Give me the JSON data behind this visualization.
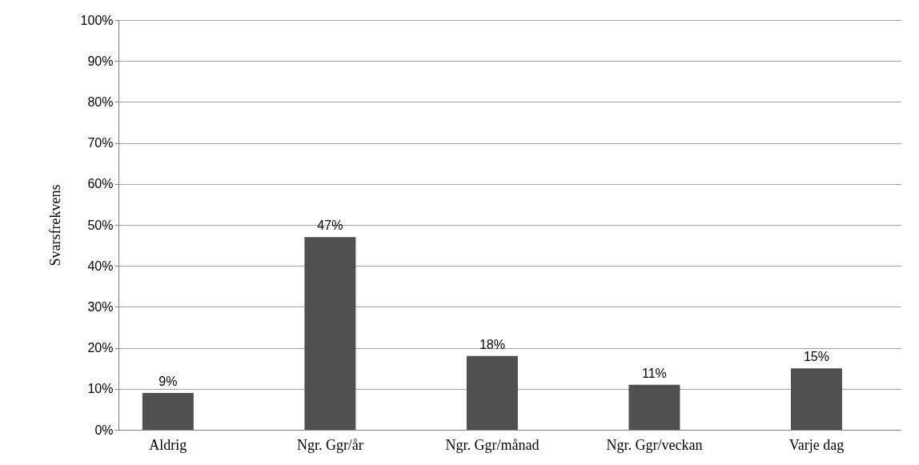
{
  "chart_data": {
    "type": "bar",
    "ylabel": "Svarsfrekvens",
    "categories": [
      "Aldrig",
      "Ngr. Ggr/år",
      "Ngr. Ggr/månad",
      "Ngr. Ggr/veckan",
      "Varje dag"
    ],
    "values": [
      9,
      47,
      18,
      11,
      15
    ],
    "value_labels": [
      "9%",
      "47%",
      "18%",
      "11%",
      "15%"
    ],
    "color": "#505050",
    "ylim": [
      0,
      100
    ],
    "yticks": [
      {
        "value": 0,
        "label": "0%"
      },
      {
        "value": 10,
        "label": "10%"
      },
      {
        "value": 20,
        "label": "20%"
      },
      {
        "value": 30,
        "label": "30%"
      },
      {
        "value": 40,
        "label": "40%"
      },
      {
        "value": 50,
        "label": "50%"
      },
      {
        "value": 60,
        "label": "60%"
      },
      {
        "value": 70,
        "label": "70%"
      },
      {
        "value": 80,
        "label": "80%"
      },
      {
        "value": 90,
        "label": "90%"
      },
      {
        "value": 100,
        "label": "100%"
      }
    ],
    "grid": "y"
  }
}
